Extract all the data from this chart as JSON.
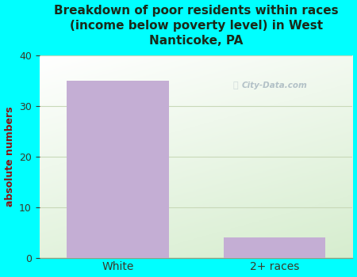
{
  "title": "Breakdown of poor residents within races\n(income below poverty level) in West\nNanticoke, PA",
  "categories": [
    "White",
    "2+ races"
  ],
  "values": [
    35,
    4
  ],
  "bar_color": "#c4aed4",
  "ylabel": "absolute numbers",
  "ylim": [
    0,
    40
  ],
  "yticks": [
    0,
    10,
    20,
    30,
    40
  ],
  "background_outer": "#00ffff",
  "background_plot_left": "#d8ecd0",
  "background_plot_right": "#f5faf5",
  "grid_color": "#c8d8b8",
  "title_color": "#1a2a1a",
  "axis_label_color": "#8b1010",
  "tick_label_color": "#3a3a2a",
  "watermark": "City-Data.com",
  "watermark_color": "#a8b8c0",
  "bar_width": 0.65
}
